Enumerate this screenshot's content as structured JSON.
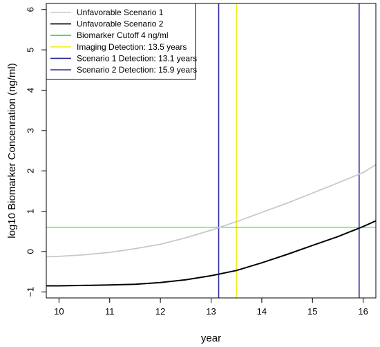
{
  "chart_data": {
    "type": "line",
    "xlabel": "year",
    "ylabel": "log10 Biomarker Concenration (ng/ml)",
    "xlim": [
      9.75,
      16.25
    ],
    "ylim": [
      -1.15,
      6.15
    ],
    "x_ticks": [
      10,
      11,
      12,
      13,
      14,
      15,
      16
    ],
    "y_ticks": [
      -1,
      0,
      1,
      2,
      3,
      4,
      5,
      6
    ],
    "grid": false,
    "legend_position": "top-left",
    "series": [
      {
        "name": "Unfavorable Scenario 1",
        "color": "#c8c8c8",
        "x": [
          9.75,
          10,
          10.5,
          11,
          11.5,
          12,
          12.5,
          13,
          13.5,
          14,
          14.5,
          15,
          15.5,
          16,
          16.25
        ],
        "y": [
          -0.13,
          -0.12,
          -0.08,
          -0.02,
          0.07,
          0.18,
          0.34,
          0.53,
          0.74,
          0.97,
          1.2,
          1.45,
          1.7,
          1.96,
          2.15
        ]
      },
      {
        "name": "Unfavorable Scenario 2",
        "color": "#000000",
        "x": [
          9.75,
          10,
          10.5,
          11,
          11.5,
          12,
          12.5,
          13,
          13.5,
          14,
          14.5,
          15,
          15.5,
          16,
          16.25
        ],
        "y": [
          -0.85,
          -0.85,
          -0.84,
          -0.83,
          -0.81,
          -0.77,
          -0.7,
          -0.6,
          -0.47,
          -0.28,
          -0.07,
          0.15,
          0.37,
          0.62,
          0.76
        ]
      }
    ],
    "reference_lines": [
      {
        "name": "Biomarker Cutoff 4 ng/ml",
        "orientation": "horizontal",
        "value": 0.602,
        "color": "#44dd44"
      },
      {
        "name": "Imaging Detection: 13.5 years",
        "orientation": "vertical",
        "value": 13.5,
        "color": "#f0f020"
      },
      {
        "name": "Scenario 1 Detection:  13.1 years",
        "orientation": "vertical",
        "value": 13.15,
        "color": "#2929a0"
      },
      {
        "name": "Scenario 2 Detection:  15.9 years",
        "orientation": "vertical",
        "value": 15.92,
        "color": "#2929a0"
      }
    ],
    "legend": [
      {
        "label": "Unfavorable Scenario 1",
        "color": "#c8c8c8"
      },
      {
        "label": "Unfavorable Scenario 2",
        "color": "#000000"
      },
      {
        "label": "Biomarker Cutoff 4 ng/ml",
        "color": "#44dd44"
      },
      {
        "label": "Imaging Detection: 13.5 years",
        "color": "#f0f020"
      },
      {
        "label": "Scenario 1 Detection:  13.1 years",
        "color": "#2929a0"
      },
      {
        "label": "Scenario 2 Detection:  15.9 years",
        "color": "#2929a0"
      }
    ]
  }
}
